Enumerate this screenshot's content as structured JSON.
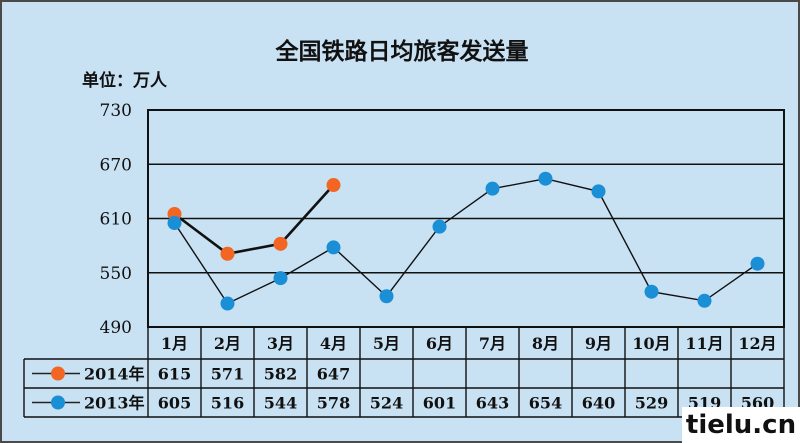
{
  "chart_data": {
    "type": "line",
    "title": "全国铁路日均旅客发送量",
    "unit_label": "单位：万人",
    "categories": [
      "1月",
      "2月",
      "3月",
      "4月",
      "5月",
      "6月",
      "7月",
      "8月",
      "9月",
      "10月",
      "11月",
      "12月"
    ],
    "ylim": [
      490,
      730
    ],
    "yticks": [
      490,
      550,
      610,
      670,
      730
    ],
    "grid": true,
    "legend": "table-below",
    "series": [
      {
        "name": "2014年",
        "color": "#f26522",
        "values": [
          615,
          571,
          582,
          647,
          null,
          null,
          null,
          null,
          null,
          null,
          null,
          null
        ]
      },
      {
        "name": "2013年",
        "color": "#1a8fd6",
        "values": [
          605,
          516,
          544,
          578,
          524,
          601,
          643,
          654,
          640,
          529,
          519,
          560
        ]
      }
    ]
  },
  "watermark": "tielu.cn"
}
